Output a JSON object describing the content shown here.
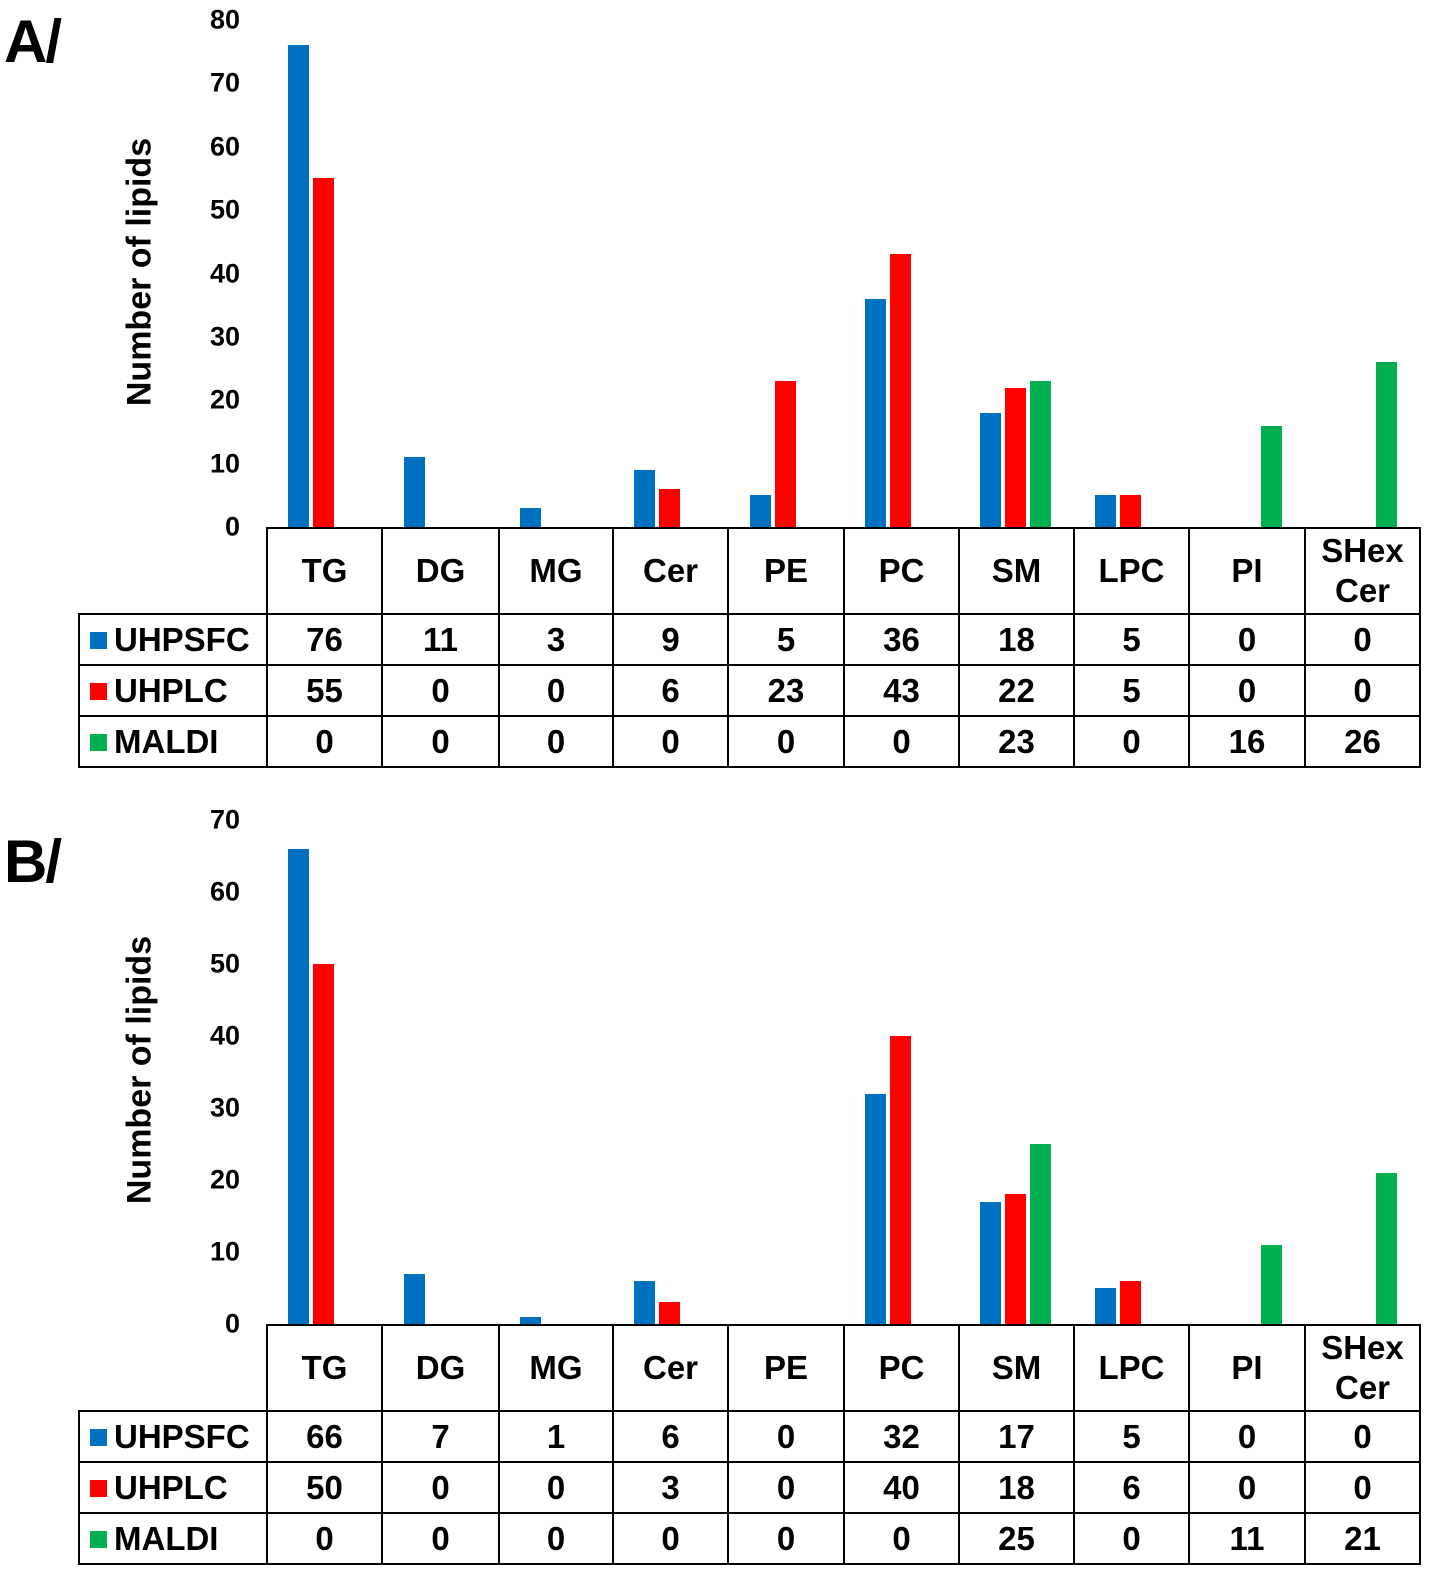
{
  "chart_data": [
    {
      "panel_label": "A/",
      "type": "bar",
      "ylabel": "Number of lipids",
      "ylim": [
        0,
        80
      ],
      "yticks": [
        0,
        10,
        20,
        30,
        40,
        50,
        60,
        70,
        80
      ],
      "categories": [
        "TG",
        "DG",
        "MG",
        "Cer",
        "PE",
        "PC",
        "SM",
        "LPC",
        "PI",
        "SHex Cer"
      ],
      "legend_placement": "data-table",
      "series": [
        {
          "name": "UHPSFC",
          "color": "#0070C0",
          "values": [
            76,
            11,
            3,
            9,
            5,
            36,
            18,
            5,
            0,
            0
          ]
        },
        {
          "name": "UHPLC",
          "color": "#FF0000",
          "values": [
            55,
            0,
            0,
            6,
            23,
            43,
            22,
            5,
            0,
            0
          ]
        },
        {
          "name": "MALDI",
          "color": "#00B050",
          "values": [
            0,
            0,
            0,
            0,
            0,
            0,
            23,
            0,
            16,
            26
          ]
        }
      ]
    },
    {
      "panel_label": "B/",
      "type": "bar",
      "ylabel": "Number of lipids",
      "ylim": [
        0,
        70
      ],
      "yticks": [
        0,
        10,
        20,
        30,
        40,
        50,
        60,
        70
      ],
      "categories": [
        "TG",
        "DG",
        "MG",
        "Cer",
        "PE",
        "PC",
        "SM",
        "LPC",
        "PI",
        "SHex Cer"
      ],
      "legend_placement": "data-table",
      "series": [
        {
          "name": "UHPSFC",
          "color": "#0070C0",
          "values": [
            66,
            7,
            1,
            6,
            0,
            32,
            17,
            5,
            0,
            0
          ]
        },
        {
          "name": "UHPLC",
          "color": "#FF0000",
          "values": [
            50,
            0,
            0,
            3,
            0,
            40,
            18,
            6,
            0,
            0
          ]
        },
        {
          "name": "MALDI",
          "color": "#00B050",
          "values": [
            0,
            0,
            0,
            0,
            0,
            0,
            25,
            0,
            11,
            21
          ]
        }
      ]
    }
  ]
}
